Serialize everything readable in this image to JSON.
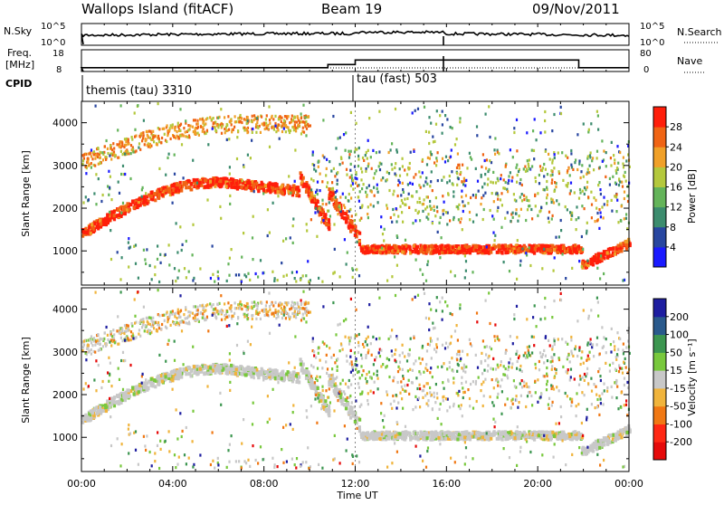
{
  "header": {
    "title": "Wallops Island (fitACF)",
    "beam": "Beam 19",
    "date": "09/Nov/2011"
  },
  "noise_panel": {
    "left_label": "N.Sky",
    "left_ticks": [
      "10^5",
      "10^0"
    ],
    "right_ticks": [
      "10^5",
      "10^0"
    ],
    "right_label": "N.Search",
    "right_label_style": "dotted"
  },
  "freq_panel": {
    "left_label_1": "Freq.",
    "left_label_2": "[MHz]",
    "left_ticks": [
      "18",
      "8"
    ],
    "right_ticks": [
      "80",
      "0"
    ],
    "right_label": "Nave",
    "right_label_style": "dotted"
  },
  "cpid_panel": {
    "label": "CPID",
    "modes": [
      {
        "text": "themis (tau) 3310",
        "start_hour": 0
      },
      {
        "text": "tau (fast) 503",
        "start_hour": 12
      }
    ]
  },
  "x_axis": {
    "label": "Time UT",
    "ticks": [
      "00:00",
      "04:00",
      "08:00",
      "12:00",
      "16:00",
      "20:00",
      "00:00"
    ],
    "tick_hours": [
      0,
      4,
      8,
      12,
      16,
      20,
      24
    ]
  },
  "power_panel": {
    "ylabel": "Slant Range [km]",
    "yticks": [
      "1000",
      "2000",
      "3000",
      "4000"
    ],
    "ytick_values": [
      1000,
      2000,
      3000,
      4000
    ],
    "colorbar_label": "Power [dB]",
    "colorbar_ticks": [
      "4",
      "8",
      "12",
      "16",
      "20",
      "24",
      "28"
    ],
    "colors": [
      "#1a1aff",
      "#2846a0",
      "#3c8c6e",
      "#64b45a",
      "#b4c83c",
      "#f0a028",
      "#f06414",
      "#ff1e0a"
    ]
  },
  "velocity_panel": {
    "ylabel": "Slant Range [km]",
    "yticks": [
      "1000",
      "2000",
      "3000",
      "4000"
    ],
    "ytick_values": [
      1000,
      2000,
      3000,
      4000
    ],
    "colorbar_label": "Velocity [m s⁻¹]",
    "colorbar_ticks": [
      "200",
      "100",
      "50",
      "15",
      "-15",
      "-50",
      "-100",
      "-200"
    ],
    "colors": [
      "#1e1ea0",
      "#2a5a8c",
      "#3c9650",
      "#78c83c",
      "#c8c8c8",
      "#f0b43c",
      "#f07814",
      "#ff2814",
      "#e60a0a"
    ]
  },
  "chart_data": {
    "type": "heatmap",
    "title": "Wallops Island (fitACF)",
    "xlabel": "Time UT",
    "ylabel": "Slant Range [km]",
    "xlim_hours": [
      0,
      24
    ],
    "ylim_km": [
      200,
      4500
    ],
    "series": [
      {
        "name": "Power [dB]",
        "zlim": [
          0,
          30
        ],
        "echo_bands": [
          {
            "from_hour": 0.0,
            "to_hour": 10.5,
            "description_ranges_km": [
              1400,
              2700,
              2300
            ]
          },
          {
            "from_hour": 12.0,
            "to_hour": 22.0,
            "description_ranges_km": [
              1050,
              1050,
              1050
            ]
          }
        ]
      },
      {
        "name": "Velocity [m s⁻¹]",
        "zlim": [
          -200,
          200
        ]
      }
    ],
    "cpid_switch_hour": 12,
    "freq_step": [
      {
        "hour": 0.0,
        "freq_mhz": 10.5
      },
      {
        "hour": 10.8,
        "freq_mhz": 12.5
      },
      {
        "hour": 12.0,
        "freq_mhz": 15.5
      },
      {
        "hour": 21.8,
        "freq_mhz": 10.5
      },
      {
        "hour": 24.0,
        "freq_mhz": 10.5
      }
    ]
  }
}
